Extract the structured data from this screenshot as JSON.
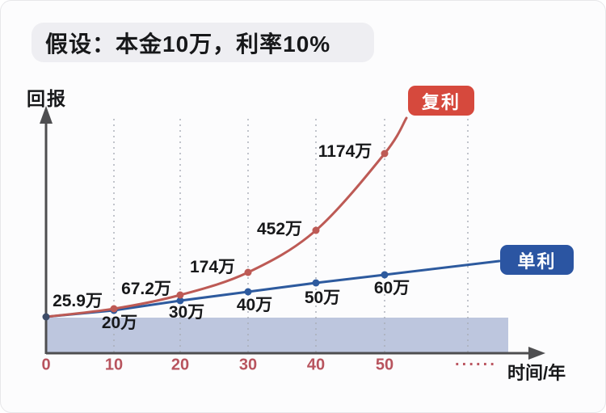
{
  "title": "假设：本金10万，利率10%",
  "colors": {
    "compound_line": "#bd5a55",
    "compound_badge": "#d6493d",
    "simple_line": "#2d5a9e",
    "simple_badge": "#2b55a2",
    "start_dot": "#3e4d68",
    "band": "#bdc6de",
    "axis": "#4e4e50",
    "grid": "#a8adb6",
    "tick_text": "#b8545e",
    "title_badge_bg": "#eeeef2"
  },
  "chart_data": {
    "type": "line",
    "title": "假设：本金10万，利率10%",
    "xlabel": "时间/年",
    "ylabel": "回报",
    "x": [
      0,
      10,
      20,
      30,
      40,
      50
    ],
    "x_tick_labels": [
      "0",
      "10",
      "20",
      "30",
      "40",
      "50"
    ],
    "x_axis_ellipsis": "······",
    "value_unit": "万",
    "grid": "vertical-dotted",
    "legend_position": "badges-at-line-ends",
    "series": [
      {
        "name": "复利",
        "color": "#bd5a55",
        "values": [
          10,
          25.9,
          67.2,
          174,
          452,
          1174
        ],
        "point_labels": [
          "25.9万",
          "67.2万",
          "174万",
          "452万",
          "1174万"
        ]
      },
      {
        "name": "单利",
        "color": "#2d5a9e",
        "values": [
          10,
          20,
          30,
          40,
          50,
          60
        ],
        "point_labels": [
          "20万",
          "30万",
          "40万",
          "50万",
          "60万"
        ]
      }
    ],
    "baseline_band_color": "#bdc6de"
  }
}
